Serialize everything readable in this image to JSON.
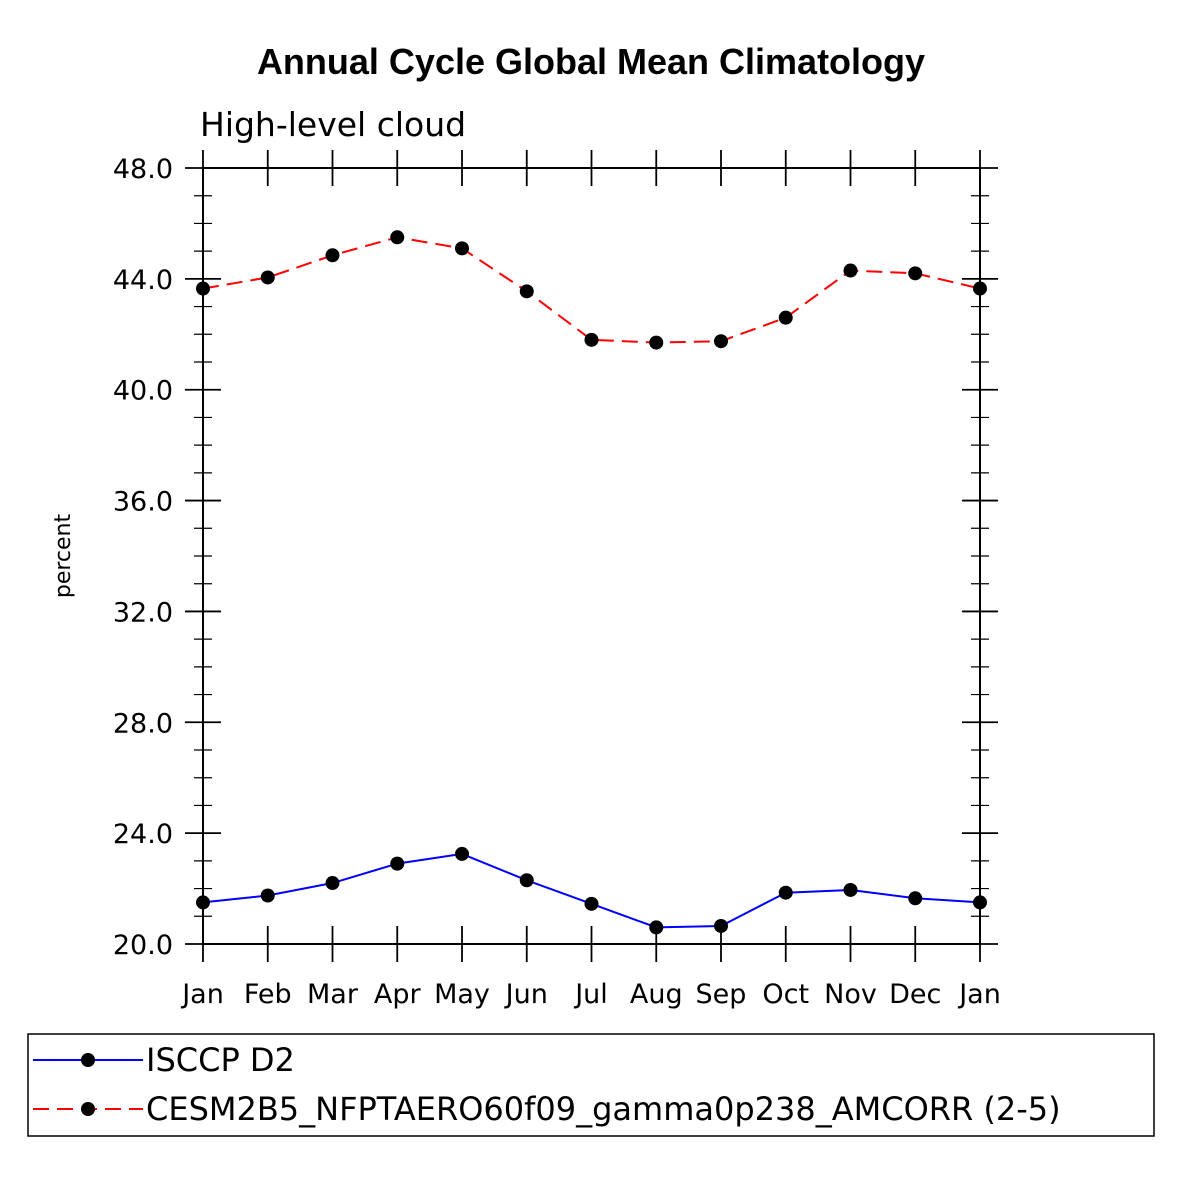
{
  "chart_data": {
    "type": "line",
    "title": "Annual Cycle Global Mean Climatology",
    "subtitle": "High-level cloud",
    "xlabel": "",
    "ylabel": "percent",
    "categories": [
      "Jan",
      "Feb",
      "Mar",
      "Apr",
      "May",
      "Jun",
      "Jul",
      "Aug",
      "Sep",
      "Oct",
      "Nov",
      "Dec",
      "Jan"
    ],
    "ylim": [
      20.0,
      48.0
    ],
    "yticks": [
      "20.0",
      "24.0",
      "28.0",
      "32.0",
      "36.0",
      "40.0",
      "44.0",
      "48.0"
    ],
    "ytick_values": [
      20,
      24,
      28,
      32,
      36,
      40,
      44,
      48
    ],
    "grid": false,
    "legend_position": "bottom",
    "series": [
      {
        "name": "ISCCP D2",
        "color": "#0000ff",
        "line_style": "solid",
        "marker": "filled-circle",
        "values": [
          21.5,
          21.75,
          22.2,
          22.9,
          23.25,
          22.3,
          21.45,
          20.6,
          20.65,
          21.85,
          21.95,
          21.65,
          21.5
        ]
      },
      {
        "name": "CESM2B5_NFPTAERO60f09_gamma0p238_AMCORR (2-5)",
        "color": "#ff0000",
        "line_style": "dashed",
        "marker": "filled-circle",
        "values": [
          43.65,
          44.05,
          44.85,
          45.5,
          45.1,
          43.55,
          41.8,
          41.7,
          41.75,
          42.6,
          44.3,
          44.2,
          43.65
        ]
      }
    ]
  }
}
